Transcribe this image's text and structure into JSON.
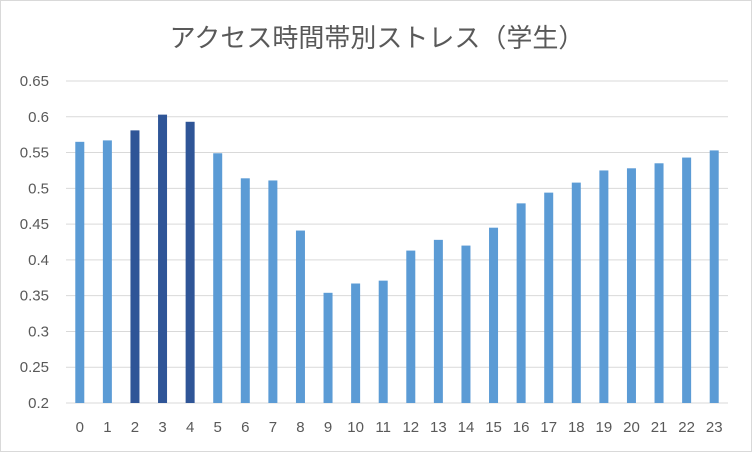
{
  "chart_data": {
    "type": "bar",
    "title": "アクセス時間帯別ストレス（学生）",
    "xlabel": "",
    "ylabel": "",
    "ylim": [
      0.2,
      0.65
    ],
    "yticks": [
      "0.2",
      "0.25",
      "0.3",
      "0.35",
      "0.4",
      "0.45",
      "0.5",
      "0.55",
      "0.6",
      "0.65"
    ],
    "grid": true,
    "categories": [
      "0",
      "1",
      "2",
      "3",
      "4",
      "5",
      "6",
      "7",
      "8",
      "9",
      "10",
      "11",
      "12",
      "13",
      "14",
      "15",
      "16",
      "17",
      "18",
      "19",
      "20",
      "21",
      "22",
      "23"
    ],
    "values": [
      0.565,
      0.567,
      0.581,
      0.603,
      0.593,
      0.549,
      0.514,
      0.511,
      0.441,
      0.354,
      0.367,
      0.371,
      0.413,
      0.428,
      0.42,
      0.445,
      0.479,
      0.494,
      0.508,
      0.525,
      0.528,
      0.535,
      0.543,
      0.553
    ],
    "highlight_indices": [
      2,
      3,
      4
    ],
    "colors": {
      "bar": "#5b9bd5",
      "highlight": "#2f5597",
      "grid": "#d9d9d9",
      "text": "#595959"
    }
  }
}
